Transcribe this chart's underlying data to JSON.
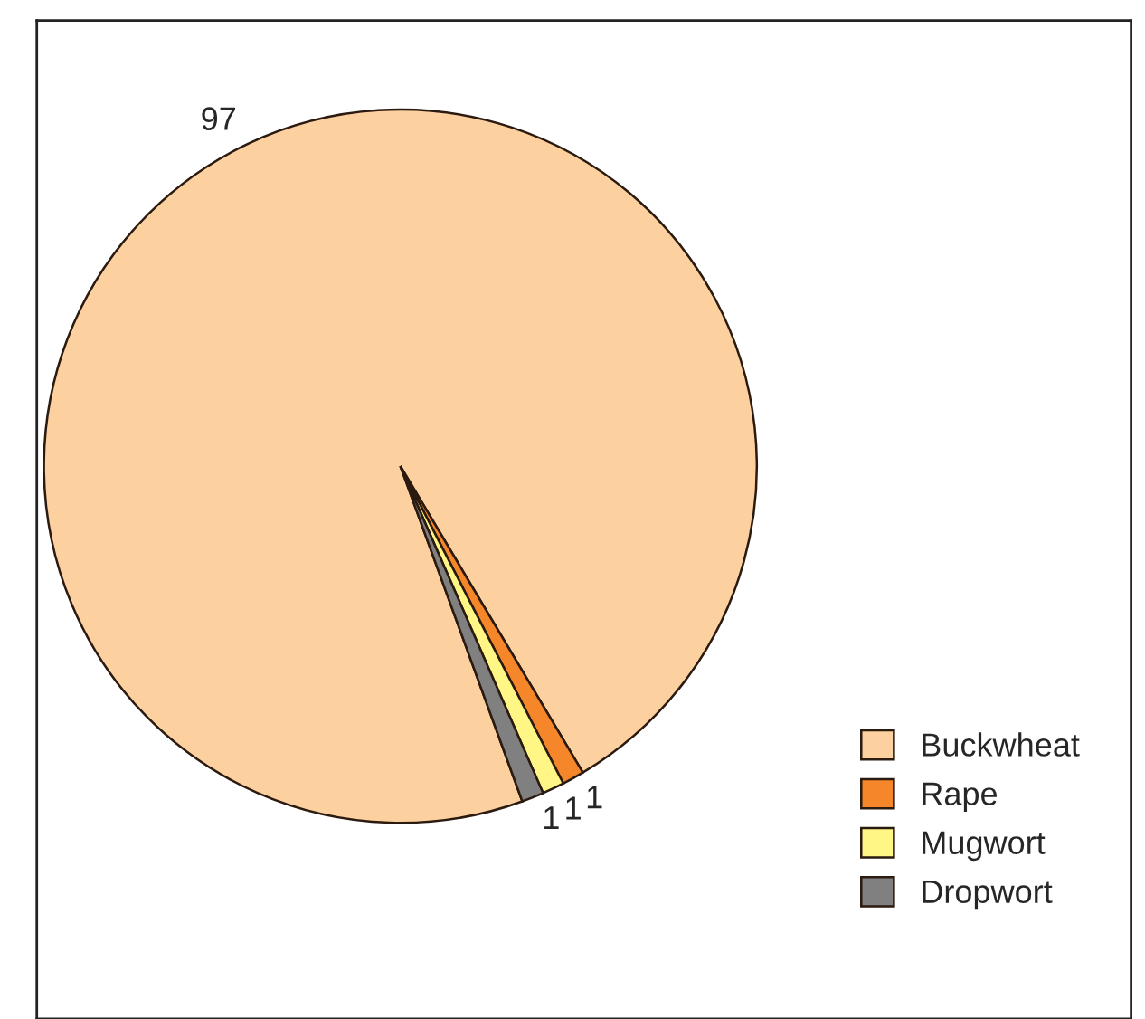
{
  "chart_data": {
    "type": "pie",
    "categories": [
      "Buckwheat",
      "Rape",
      "Mugwort",
      "Dropwort"
    ],
    "values": [
      97,
      1,
      1,
      1
    ],
    "colors": [
      "#fdd09f",
      "#f5862a",
      "#fff685",
      "#808080"
    ],
    "data_labels": true,
    "legend": "bottom right"
  }
}
